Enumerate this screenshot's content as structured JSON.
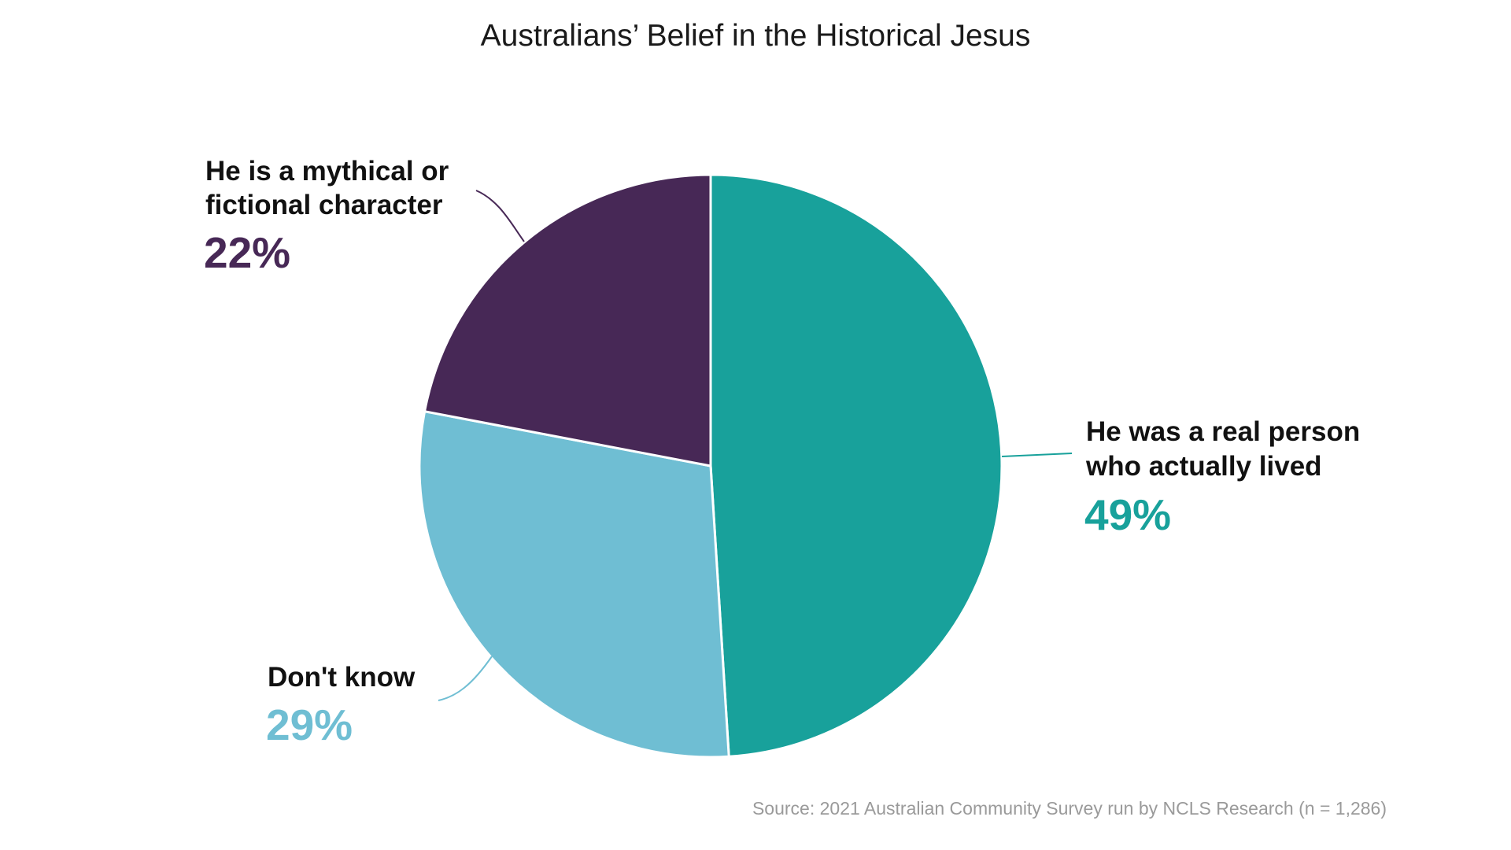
{
  "chart_data": {
    "type": "pie",
    "title": "Australians’ Belief in the Historical Jesus",
    "source": "Source: 2021 Australian Community Survey run by NCLS Research (n = 1,286)",
    "slices": [
      {
        "label_lines": [
          "He was a real person",
          "who actually lived"
        ],
        "value": 49,
        "value_label": "49%",
        "color": "#18a19b"
      },
      {
        "label_lines": [
          "Don't know"
        ],
        "value": 29,
        "value_label": "29%",
        "color": "#6fbed3"
      },
      {
        "label_lines": [
          "He is a mythical or",
          "fictional character"
        ],
        "value": 22,
        "value_label": "22%",
        "color": "#472856"
      }
    ],
    "start_angle": "12 o'clock",
    "direction": "clockwise",
    "legend": "none"
  }
}
